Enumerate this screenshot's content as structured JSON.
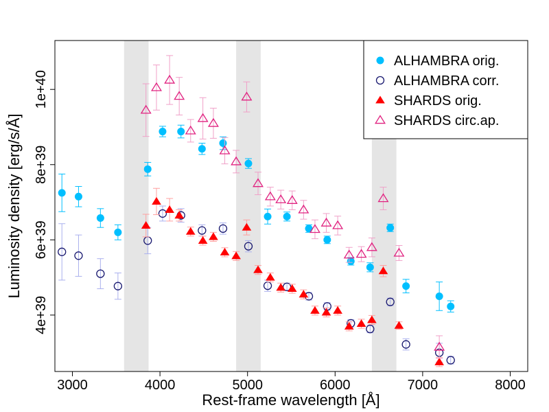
{
  "chart_data": {
    "type": "scatter",
    "title": "",
    "xlabel": "Rest-frame wavelength [Å]",
    "ylabel": "Luminosity density [erg/s/Å]",
    "xlim": [
      2800,
      8200
    ],
    "ylim": [
      2.5e+39,
      1.13e+40
    ],
    "x_ticks": [
      {
        "value": 3000,
        "label": "3000"
      },
      {
        "value": 4000,
        "label": "4000"
      },
      {
        "value": 5000,
        "label": "5000"
      },
      {
        "value": 6000,
        "label": "6000"
      },
      {
        "value": 7000,
        "label": "7000"
      },
      {
        "value": 8000,
        "label": "8000"
      }
    ],
    "y_ticks": [
      {
        "value": 4e+39,
        "label": "4e+39"
      },
      {
        "value": 6e+39,
        "label": "6e+39"
      },
      {
        "value": 8e+39,
        "label": "8e+39"
      },
      {
        "value": 1e+40,
        "label": "1e+40"
      }
    ],
    "shaded_bands": [
      [
        3590,
        3870
      ],
      [
        4870,
        5150
      ],
      [
        6420,
        6700
      ]
    ],
    "band_color": "#e5e5e5",
    "legend_position": "top-right",
    "series": [
      {
        "name": "ALHAMBRA orig.",
        "marker": "filled-circle",
        "color": "#00bfff",
        "error_color": "#00bfff",
        "points": [
          [
            2880,
            7.25e+39,
            5e+38
          ],
          [
            3070,
            7.15e+39,
            2.7e+38
          ],
          [
            3320,
            6.58e+39,
            2.5e+38
          ],
          [
            3520,
            6.2e+39,
            2e+38
          ],
          [
            3860,
            7.88e+39,
            1.8e+38
          ],
          [
            4030,
            8.88e+39,
            1.4e+38
          ],
          [
            4240,
            8.88e+39,
            1.7e+38
          ],
          [
            4480,
            8.42e+39,
            1.5e+38
          ],
          [
            4720,
            8.57e+39,
            1.7e+38
          ],
          [
            5010,
            8.03e+39,
            1.3e+38
          ],
          [
            5230,
            6.62e+39,
            2e+38
          ],
          [
            5450,
            6.62e+39,
            1.2e+38
          ],
          [
            5700,
            6.3e+39,
            1e+38
          ],
          [
            5910,
            6e+39,
            1e+38
          ],
          [
            6180,
            5.43e+39,
            1e+38
          ],
          [
            6400,
            5.27e+39,
            1.2e+38
          ],
          [
            6630,
            6.32e+39,
            1e+38
          ],
          [
            6810,
            4.77e+39,
            1.8e+38
          ],
          [
            7190,
            4.5e+39,
            3.8e+38
          ],
          [
            7320,
            4.23e+39,
            1.5e+38
          ]
        ]
      },
      {
        "name": "ALHAMBRA corr.",
        "marker": "open-circle",
        "color": "#191970",
        "error_color": "#aab0ee",
        "points": [
          [
            2880,
            5.68e+39,
            7.5e+38
          ],
          [
            3070,
            5.58e+39,
            5.5e+38
          ],
          [
            3320,
            5.1e+39,
            4e+38
          ],
          [
            3520,
            4.77e+39,
            3.5e+38
          ],
          [
            3860,
            5.98e+39,
            3.5e+38
          ],
          [
            4030,
            6.7e+39,
            2e+38
          ],
          [
            4240,
            6.65e+39,
            1.8e+38
          ],
          [
            4480,
            6.25e+39,
            1.5e+38
          ],
          [
            4720,
            6.3e+39,
            1.5e+38
          ],
          [
            5010,
            5.83e+39,
            1.5e+38
          ],
          [
            5230,
            4.78e+39,
            1.5e+38
          ],
          [
            5450,
            4.75e+39,
            1e+38
          ],
          [
            5700,
            4.5e+39,
            1e+38
          ],
          [
            5910,
            4.23e+39,
            1e+38
          ],
          [
            6180,
            3.78e+39,
            1e+38
          ],
          [
            6400,
            3.63e+39,
            1e+38
          ],
          [
            6630,
            4.35e+39,
            1e+38
          ],
          [
            6810,
            3.22e+39,
            1.5e+38
          ],
          [
            7190,
            3e+39,
            2.5e+38
          ],
          [
            7320,
            2.8e+39,
            1e+38
          ]
        ]
      },
      {
        "name": "SHARDS orig.",
        "marker": "filled-triangle",
        "color": "#ff0000",
        "error_color": "#ffa0a0",
        "points": [
          [
            3840,
            6.38e+39,
            3e+38
          ],
          [
            3960,
            7.02e+39,
            3.5e+38
          ],
          [
            4110,
            6.8e+39,
            3e+38
          ],
          [
            4220,
            6.65e+39,
            1.5e+38
          ],
          [
            4350,
            6.22e+39,
            1.2e+38
          ],
          [
            4490,
            5.98e+39,
            1.2e+38
          ],
          [
            4610,
            6.08e+39,
            1.2e+38
          ],
          [
            4740,
            5.67e+39,
            1.2e+38
          ],
          [
            4870,
            5.57e+39,
            1.2e+38
          ],
          [
            4990,
            6.33e+39,
            2e+38
          ],
          [
            5120,
            5.2e+39,
            1.2e+38
          ],
          [
            5260,
            5e+39,
            1.2e+38
          ],
          [
            5380,
            4.73e+39,
            1.2e+38
          ],
          [
            5510,
            4.7e+39,
            1.2e+38
          ],
          [
            5640,
            4.55e+39,
            1.2e+38
          ],
          [
            5770,
            4.12e+39,
            1.2e+38
          ],
          [
            5900,
            4.07e+39,
            1.2e+38
          ],
          [
            6030,
            4.12e+39,
            1.2e+38
          ],
          [
            6160,
            3.7e+39,
            1.2e+38
          ],
          [
            6300,
            3.77e+39,
            1.2e+38
          ],
          [
            6420,
            3.87e+39,
            1.2e+38
          ],
          [
            6550,
            5.17e+39,
            1.5e+38
          ],
          [
            6730,
            3.72e+39,
            1e+38
          ],
          [
            7190,
            2.75e+39,
            1.2e+38
          ]
        ]
      },
      {
        "name": "SHARDS circ.ap.",
        "marker": "open-triangle",
        "color": "#e0207f",
        "error_color": "#f0a0c8",
        "points": [
          [
            3840,
            9.45e+39,
            7e+38
          ],
          [
            3960,
            1.005e+40,
            6e+38
          ],
          [
            4110,
            1.025e+40,
            6.5e+38
          ],
          [
            4220,
            9.82e+39,
            5e+38
          ],
          [
            4350,
            8.9e+39,
            3e+38
          ],
          [
            4490,
            9.23e+39,
            5.5e+38
          ],
          [
            4610,
            9.1e+39,
            4e+38
          ],
          [
            4740,
            8.37e+39,
            3.5e+38
          ],
          [
            4870,
            8.08e+39,
            3e+38
          ],
          [
            4990,
            9.8e+39,
            4e+38
          ],
          [
            5120,
            7.5e+39,
            3e+38
          ],
          [
            5260,
            7.15e+39,
            2.5e+38
          ],
          [
            5380,
            7.07e+39,
            2.5e+38
          ],
          [
            5510,
            7.05e+39,
            2.5e+38
          ],
          [
            5640,
            6.8e+39,
            2.5e+38
          ],
          [
            5770,
            6.28e+39,
            2.5e+38
          ],
          [
            5900,
            6.45e+39,
            2.5e+38
          ],
          [
            6030,
            6.38e+39,
            2.5e+38
          ],
          [
            6160,
            5.6e+39,
            2e+38
          ],
          [
            6300,
            5.62e+39,
            2e+38
          ],
          [
            6420,
            5.8e+39,
            2.5e+38
          ],
          [
            6550,
            7.1e+39,
            3e+38
          ],
          [
            6730,
            5.65e+39,
            2e+38
          ],
          [
            7190,
            3.15e+39,
            3e+38
          ]
        ]
      }
    ]
  }
}
